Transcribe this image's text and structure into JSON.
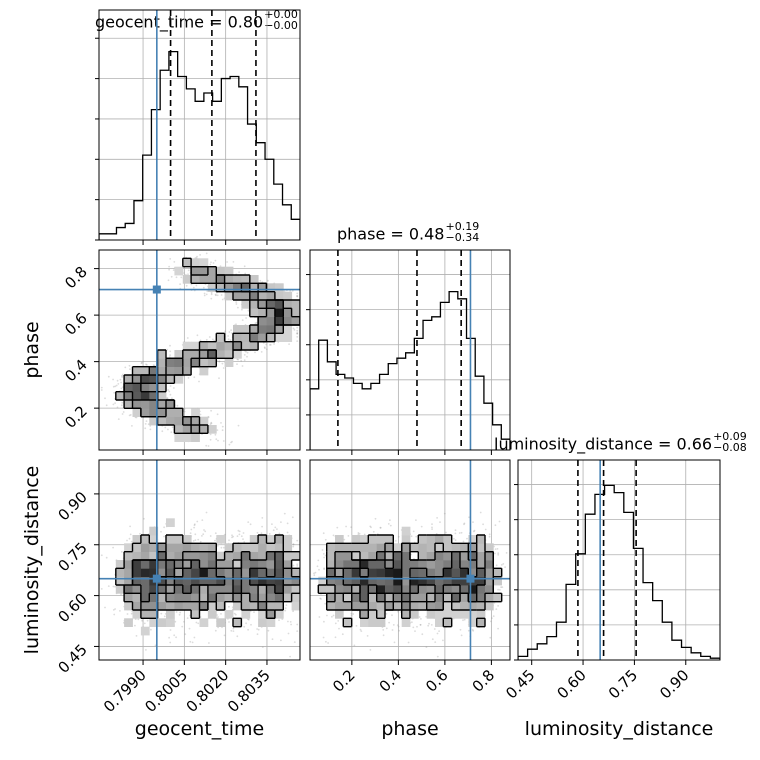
{
  "chart_data": {
    "type": "corner",
    "parameters": [
      "geocent_time",
      "phase",
      "luminosity_distance"
    ],
    "truths": {
      "geocent_time": 0.7995,
      "phase": 0.71,
      "luminosity_distance": 0.65
    },
    "titles": [
      {
        "name": "geocent_time",
        "text": "geocent_time = 0.80",
        "plus": "+0.00",
        "minus": "−0.00"
      },
      {
        "name": "phase",
        "text": "phase = 0.48",
        "plus": "+0.19",
        "minus": "−0.34"
      },
      {
        "name": "luminosity_distance",
        "text": "luminosity_distance = 0.66",
        "plus": "+0.09",
        "minus": "−0.08"
      }
    ],
    "axes": {
      "geocent_time": {
        "range": [
          0.7974,
          0.8047
        ],
        "ticks": [
          0.799,
          0.8005,
          0.802,
          0.8035
        ],
        "tick_labels": [
          "0.7990",
          "0.8005",
          "0.8020",
          "0.8035"
        ],
        "label": "geocent_time"
      },
      "phase": {
        "range": [
          0.02,
          0.88
        ],
        "ticks": [
          0.2,
          0.4,
          0.6,
          0.8
        ],
        "tick_labels": [
          "0.2",
          "0.4",
          "0.6",
          "0.8"
        ],
        "label": "phase"
      },
      "luminosity_distance": {
        "range": [
          0.41,
          1.0
        ],
        "ticks": [
          0.45,
          0.6,
          0.75,
          0.9
        ],
        "tick_labels": [
          "0.45",
          "0.60",
          "0.75",
          "0.90"
        ],
        "label": "luminosity_distance"
      }
    },
    "quantiles": {
      "geocent_time": [
        0.8,
        0.8015,
        0.8031
      ],
      "phase": [
        0.14,
        0.48,
        0.67
      ],
      "luminosity_distance": [
        0.585,
        0.66,
        0.755
      ]
    },
    "histograms": {
      "geocent_time": {
        "edges_range": [
          0.7974,
          0.8047
        ],
        "counts": [
          0.03,
          0.03,
          0.06,
          0.08,
          0.19,
          0.41,
          0.63,
          0.82,
          0.91,
          0.79,
          0.73,
          0.67,
          0.71,
          0.67,
          0.78,
          0.79,
          0.74,
          0.56,
          0.47,
          0.39,
          0.27,
          0.17,
          0.1
        ]
      },
      "phase": {
        "edges_range": [
          0.02,
          0.88
        ],
        "counts": [
          0.34,
          0.61,
          0.49,
          0.42,
          0.4,
          0.37,
          0.34,
          0.37,
          0.42,
          0.48,
          0.51,
          0.54,
          0.62,
          0.72,
          0.74,
          0.82,
          0.88,
          0.84,
          0.62,
          0.41,
          0.26,
          0.14,
          0.06
        ]
      },
      "luminosity_distance": {
        "edges_range": [
          0.41,
          1.0
        ],
        "counts": [
          0.02,
          0.06,
          0.09,
          0.13,
          0.21,
          0.42,
          0.59,
          0.81,
          0.92,
          0.97,
          0.93,
          0.82,
          0.62,
          0.43,
          0.33,
          0.21,
          0.11,
          0.07,
          0.04,
          0.02,
          0.01
        ]
      }
    },
    "grid": true
  }
}
